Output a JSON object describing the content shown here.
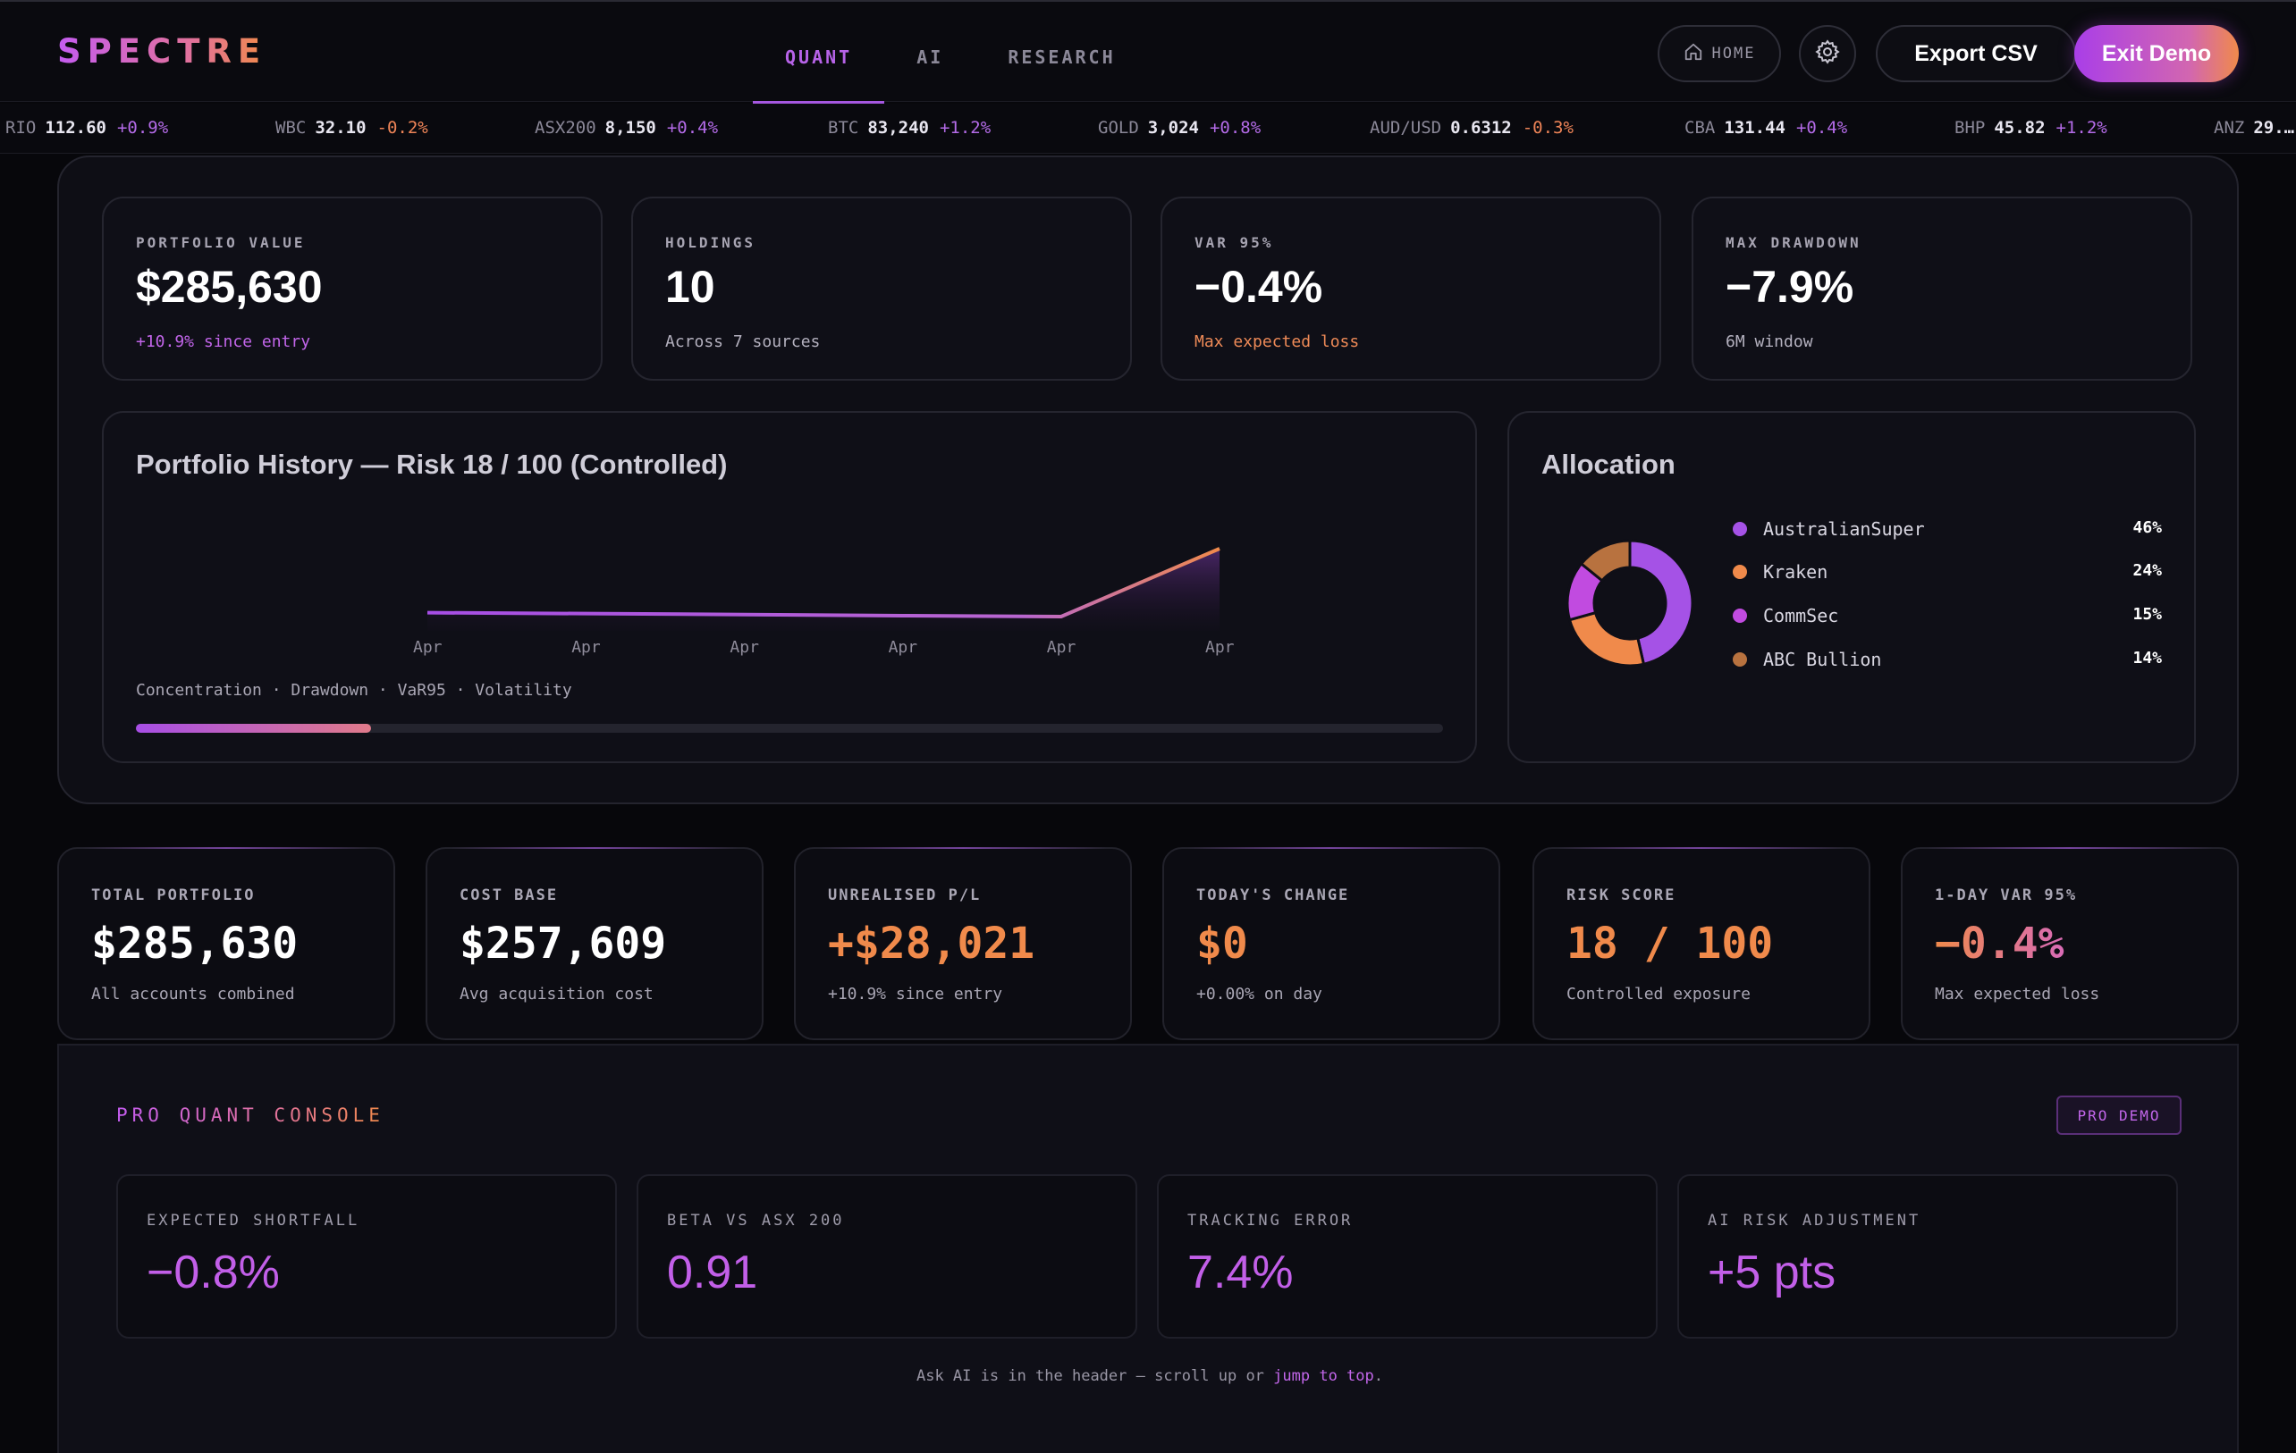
{
  "brand": {
    "logo": "SPECTRE"
  },
  "nav": {
    "tabs": [
      {
        "label": "QUANT",
        "active": true
      },
      {
        "label": "AI",
        "active": false
      },
      {
        "label": "RESEARCH",
        "active": false
      }
    ]
  },
  "header_actions": {
    "home_label": "HOME",
    "home_icon": "home-icon",
    "settings_icon": "gear-icon",
    "export_label": "Export CSV",
    "exit_label": "Exit Demo"
  },
  "ticker": [
    {
      "symbol": "RIO",
      "price": "112.60",
      "change": "+0.9%",
      "dir": "up"
    },
    {
      "symbol": "WBC",
      "price": "32.10",
      "change": "-0.2%",
      "dir": "down"
    },
    {
      "symbol": "ASX200",
      "price": "8,150",
      "change": "+0.4%",
      "dir": "up"
    },
    {
      "symbol": "BTC",
      "price": "83,240",
      "change": "+1.2%",
      "dir": "up"
    },
    {
      "symbol": "GOLD",
      "price": "3,024",
      "change": "+0.8%",
      "dir": "up"
    },
    {
      "symbol": "AUD/USD",
      "price": "0.6312",
      "change": "-0.3%",
      "dir": "down"
    },
    {
      "symbol": "CBA",
      "price": "131.44",
      "change": "+0.4%",
      "dir": "up"
    },
    {
      "symbol": "BHP",
      "price": "45.82",
      "change": "+1.2%",
      "dir": "up"
    },
    {
      "symbol": "ANZ",
      "price": "29.…",
      "change": "",
      "dir": "up"
    }
  ],
  "summary": [
    {
      "label": "PORTFOLIO VALUE",
      "value": "$285,630",
      "sub": "+10.9% since entry",
      "tone": "purple"
    },
    {
      "label": "HOLDINGS",
      "value": "10",
      "sub": "Across 7 sources",
      "tone": "neutral"
    },
    {
      "label": "VAR 95%",
      "value": "−0.4%",
      "sub": "Max expected loss",
      "tone": "orange"
    },
    {
      "label": "MAX DRAWDOWN",
      "value": "−7.9%",
      "sub": "6M window",
      "tone": "neutral"
    }
  ],
  "history": {
    "title": "Portfolio History — Risk 18 / 100 (Controlled)",
    "risk_legend": "Concentration · Drawdown · VaR95 · Volatility",
    "risk_score_fraction": 0.18,
    "colors": {
      "line_start": "#a74ee6",
      "line_end": "#f08a4b"
    }
  },
  "chart_data": {
    "type": "area",
    "title": "Portfolio History — Risk 18 / 100 (Controlled)",
    "categories": [
      "Apr",
      "Apr",
      "Apr",
      "Apr",
      "Apr",
      "Apr"
    ],
    "values": [
      257609,
      257200,
      256800,
      256300,
      255900,
      285630
    ],
    "xlabel": "",
    "ylabel": "",
    "grid": false
  },
  "allocation": {
    "title": "Allocation",
    "items": [
      {
        "name": "AustralianSuper",
        "pct": "46%",
        "value": 46,
        "color": "#a552e6"
      },
      {
        "name": "Kraken",
        "pct": "24%",
        "value": 24,
        "color": "#f08a4b"
      },
      {
        "name": "CommSec",
        "pct": "15%",
        "value": 15,
        "color": "#c14be0"
      },
      {
        "name": "ABC Bullion",
        "pct": "14%",
        "value": 14,
        "color": "#b8723f"
      }
    ]
  },
  "kpis": [
    {
      "label": "TOTAL PORTFOLIO",
      "value": "$285,630",
      "sub": "All accounts combined",
      "tone": "white"
    },
    {
      "label": "COST BASE",
      "value": "$257,609",
      "sub": "Avg acquisition cost",
      "tone": "white"
    },
    {
      "label": "UNREALISED P/L",
      "value": "+$28,021",
      "sub": "+10.9% since entry",
      "tone": "orange"
    },
    {
      "label": "TODAY'S CHANGE",
      "value": "$0",
      "sub": "+0.00% on day",
      "tone": "orange"
    },
    {
      "label": "RISK SCORE",
      "value": "18 / 100",
      "sub": "Controlled exposure",
      "tone": "orange"
    },
    {
      "label": "1-DAY VAR 95%",
      "value": "−0.4%",
      "sub": "Max expected loss",
      "tone": "grad"
    }
  ],
  "console": {
    "title": "PRO QUANT CONSOLE",
    "badge": "PRO DEMO",
    "cards": [
      {
        "label": "EXPECTED SHORTFALL",
        "value": "−0.8%"
      },
      {
        "label": "BETA VS ASX 200",
        "value": "0.91"
      },
      {
        "label": "TRACKING ERROR",
        "value": "7.4%"
      },
      {
        "label": "AI RISK ADJUSTMENT",
        "value": "+5 pts"
      }
    ],
    "note_prefix": "Ask AI is in the header — scroll up or ",
    "note_link": "jump to top",
    "note_suffix": "."
  }
}
